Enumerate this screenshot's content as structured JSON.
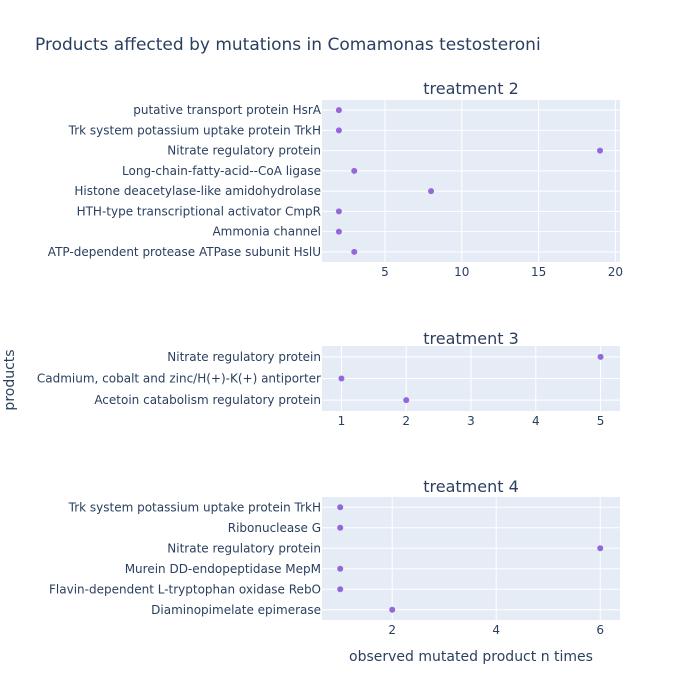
{
  "title": "Products affected by mutations in Comamonas testosteroni",
  "xlabel": "observed mutated product n times",
  "ylabel": "products",
  "colors": {
    "marker": "#9467dd",
    "plot_bg": "#e5ecf6",
    "grid": "#ffffff",
    "text": "#2a3f5f"
  },
  "chart_data": [
    {
      "type": "scatter",
      "title": "treatment 2",
      "xlabel": "",
      "ylabel": "",
      "xlim": [
        0.9,
        20.3
      ],
      "xticks": [
        5,
        10,
        15,
        20
      ],
      "grid": true,
      "categories": [
        "putative transport protein HsrA",
        "Trk system potassium uptake protein TrkH",
        "Nitrate regulatory protein",
        "Long-chain-fatty-acid--CoA ligase",
        "Histone deacetylase-like amidohydrolase",
        "HTH-type transcriptional activator CmpR",
        "Ammonia channel",
        "ATP-dependent protease ATPase subunit HslU"
      ],
      "values": [
        2,
        2,
        19,
        3,
        8,
        2,
        2,
        3
      ]
    },
    {
      "type": "scatter",
      "title": "treatment 3",
      "xlabel": "",
      "ylabel": "",
      "xlim": [
        0.7,
        5.3
      ],
      "xticks": [
        1,
        2,
        3,
        4,
        5
      ],
      "grid": true,
      "categories": [
        "Nitrate regulatory protein",
        "Cadmium, cobalt and zinc/H(+)-K(+) antiporter",
        "Acetoin catabolism regulatory protein"
      ],
      "values": [
        5,
        1,
        2
      ]
    },
    {
      "type": "scatter",
      "title": "treatment 4",
      "xlabel": "",
      "ylabel": "",
      "xlim": [
        0.65,
        6.38
      ],
      "xticks": [
        2,
        4,
        6
      ],
      "grid": true,
      "categories": [
        "Trk system potassium uptake protein TrkH",
        "Ribonuclease G",
        "Nitrate regulatory protein",
        "Murein DD-endopeptidase MepM",
        "Flavin-dependent L-tryptophan oxidase RebO",
        "Diaminopimelate epimerase"
      ],
      "values": [
        1,
        1,
        6,
        1,
        1,
        2
      ]
    }
  ]
}
